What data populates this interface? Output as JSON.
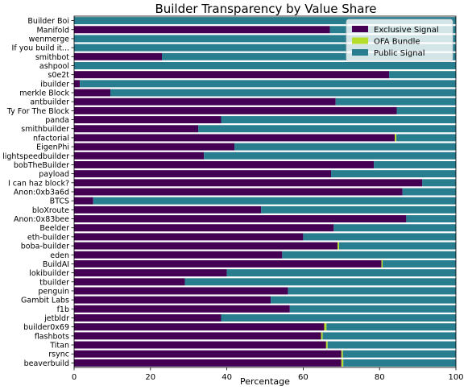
{
  "chart_data": {
    "type": "bar",
    "orientation": "horizontal",
    "stacked": true,
    "title": "Builder Transparency by Value Share",
    "xlabel": "Percentage",
    "ylabel": "",
    "xlim": [
      0,
      100
    ],
    "xticks": [
      0,
      20,
      40,
      60,
      80,
      100
    ],
    "grid": false,
    "legend_position": "top-right",
    "categories": [
      "Builder Boi",
      "Manifold",
      "wenmerge",
      "If you build it...",
      "smithbot",
      "ashpool",
      "s0e2t",
      "ibuilder",
      "merkle Block",
      "antbuilder",
      "Ty For The Block",
      "panda",
      "smithbuilder",
      "nfactorial",
      "EigenPhi",
      "lightspeedbuilder",
      "bobTheBuilder",
      "payload",
      "I can haz block?",
      "Anon:0xb3a6d",
      "BTCS",
      "bloXroute",
      "Anon:0x83bee",
      "Beelder",
      "eth-builder",
      "boba-builder",
      "eden",
      "BuildAI",
      "lokibuilder",
      "tbuilder",
      "penguin",
      "Gambit Labs",
      "f1b",
      "jetbldr",
      "builder0x69",
      "flashbots",
      "Titan",
      "rsync",
      "beaverbuild"
    ],
    "series": [
      {
        "name": "Exclusive Signal",
        "color": "#440154",
        "values": [
          0,
          67,
          0,
          0,
          23,
          0,
          82.5,
          1.5,
          9.5,
          68.5,
          84.5,
          38.5,
          32.5,
          84,
          42,
          34,
          78.5,
          67.3,
          91.2,
          86,
          5,
          49,
          87,
          68,
          60,
          69,
          54.5,
          80.5,
          40,
          29,
          56,
          51.5,
          56.5,
          38.5,
          65.5,
          64.7,
          66,
          70,
          70
        ]
      },
      {
        "name": "OFA Bundle",
        "color": "#b5de2b",
        "values": [
          0,
          0,
          0,
          0,
          0,
          0,
          0,
          0,
          0,
          0,
          0,
          0,
          0,
          0.4,
          0,
          0,
          0,
          0,
          0,
          0,
          0,
          0,
          0,
          0,
          0,
          0.4,
          0,
          0.3,
          0,
          0,
          0,
          0,
          0,
          0,
          0.6,
          0.4,
          0.4,
          0.4,
          0.5
        ]
      },
      {
        "name": "Public Signal",
        "color": "#287d8e",
        "values": [
          100,
          33,
          100,
          100,
          77,
          100,
          17.5,
          98.5,
          90.5,
          31.5,
          15.5,
          61.5,
          67.5,
          15.6,
          58,
          66,
          21.5,
          32.7,
          8.8,
          14,
          95,
          51,
          13,
          32,
          40,
          30.6,
          45.5,
          19.2,
          60,
          71,
          44,
          48.5,
          43.5,
          61.5,
          33.9,
          34.9,
          33.6,
          29.6,
          29.5
        ]
      }
    ]
  }
}
